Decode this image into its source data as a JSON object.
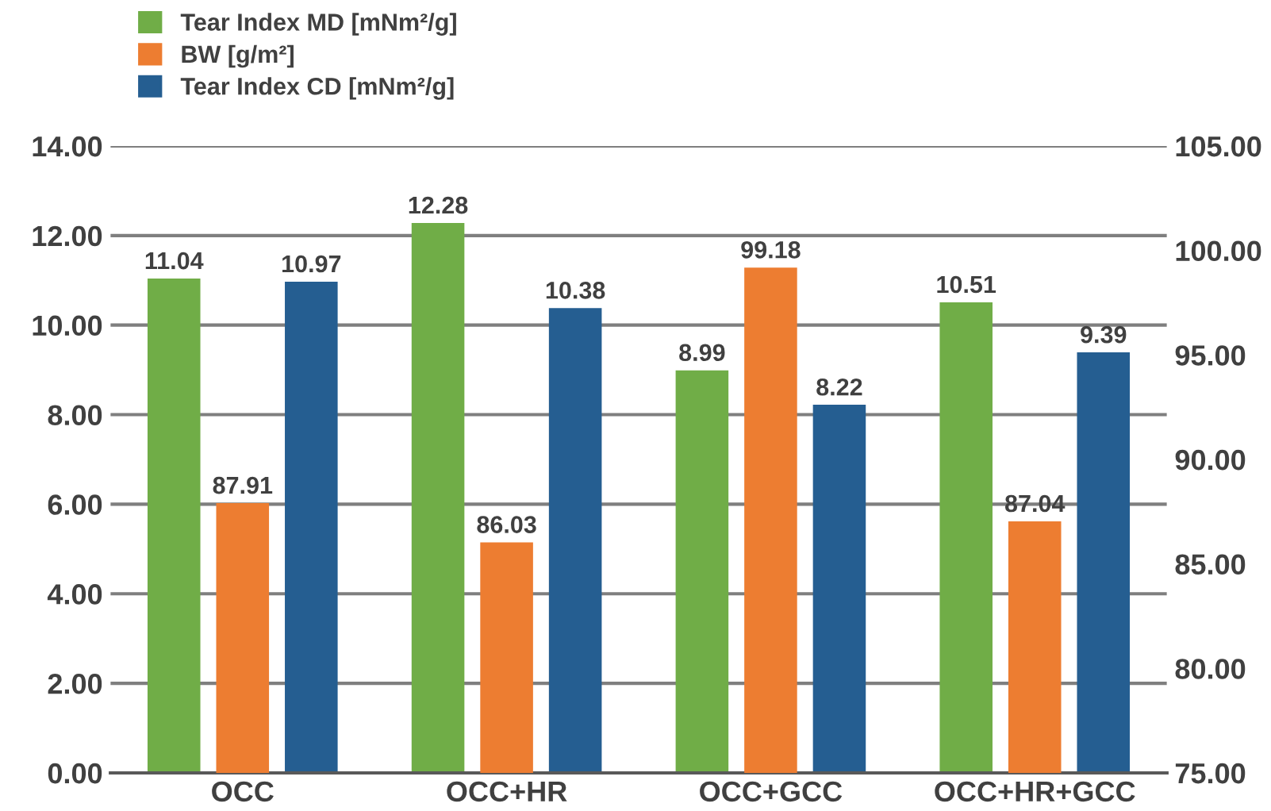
{
  "chart_data": {
    "type": "bar",
    "categories": [
      "OCC",
      "OCC+HR",
      "OCC+GCC",
      "OCC+HR+GCC"
    ],
    "series": [
      {
        "name": "Tear Index MD [mNm²/g]",
        "color": "#70ad47",
        "values": [
          11.04,
          12.28,
          8.99,
          10.51
        ]
      },
      {
        "name": "BW [g/m²]",
        "color": "#ed7d31",
        "values": [
          87.91,
          86.03,
          99.18,
          87.04
        ],
        "axis": "y2"
      },
      {
        "name": "Tear Index CD [mNm²/g]",
        "color": "#255e91",
        "values": [
          10.97,
          10.38,
          8.22,
          9.39
        ]
      }
    ],
    "ylim": [
      0,
      14
    ],
    "yticks": [
      {
        "value": 0,
        "label": "0.00"
      },
      {
        "value": 2,
        "label": "2.00"
      },
      {
        "value": 4,
        "label": "4.00"
      },
      {
        "value": 6,
        "label": "6.00"
      },
      {
        "value": 8,
        "label": "8.00"
      },
      {
        "value": 10,
        "label": "10.00"
      },
      {
        "value": 12,
        "label": "12.00"
      },
      {
        "value": 14,
        "label": "14.00"
      }
    ],
    "y2lim": [
      75,
      105
    ],
    "y2ticks": [
      {
        "value": 75,
        "label": "75.00"
      },
      {
        "value": 80,
        "label": "80.00"
      },
      {
        "value": 85,
        "label": "85.00"
      },
      {
        "value": 90,
        "label": "90.00"
      },
      {
        "value": 95,
        "label": "95.00"
      },
      {
        "value": 100,
        "label": "100.00"
      },
      {
        "value": 105,
        "label": "105.00"
      }
    ],
    "data_labels": true,
    "grid": "y",
    "legend": "top left"
  }
}
